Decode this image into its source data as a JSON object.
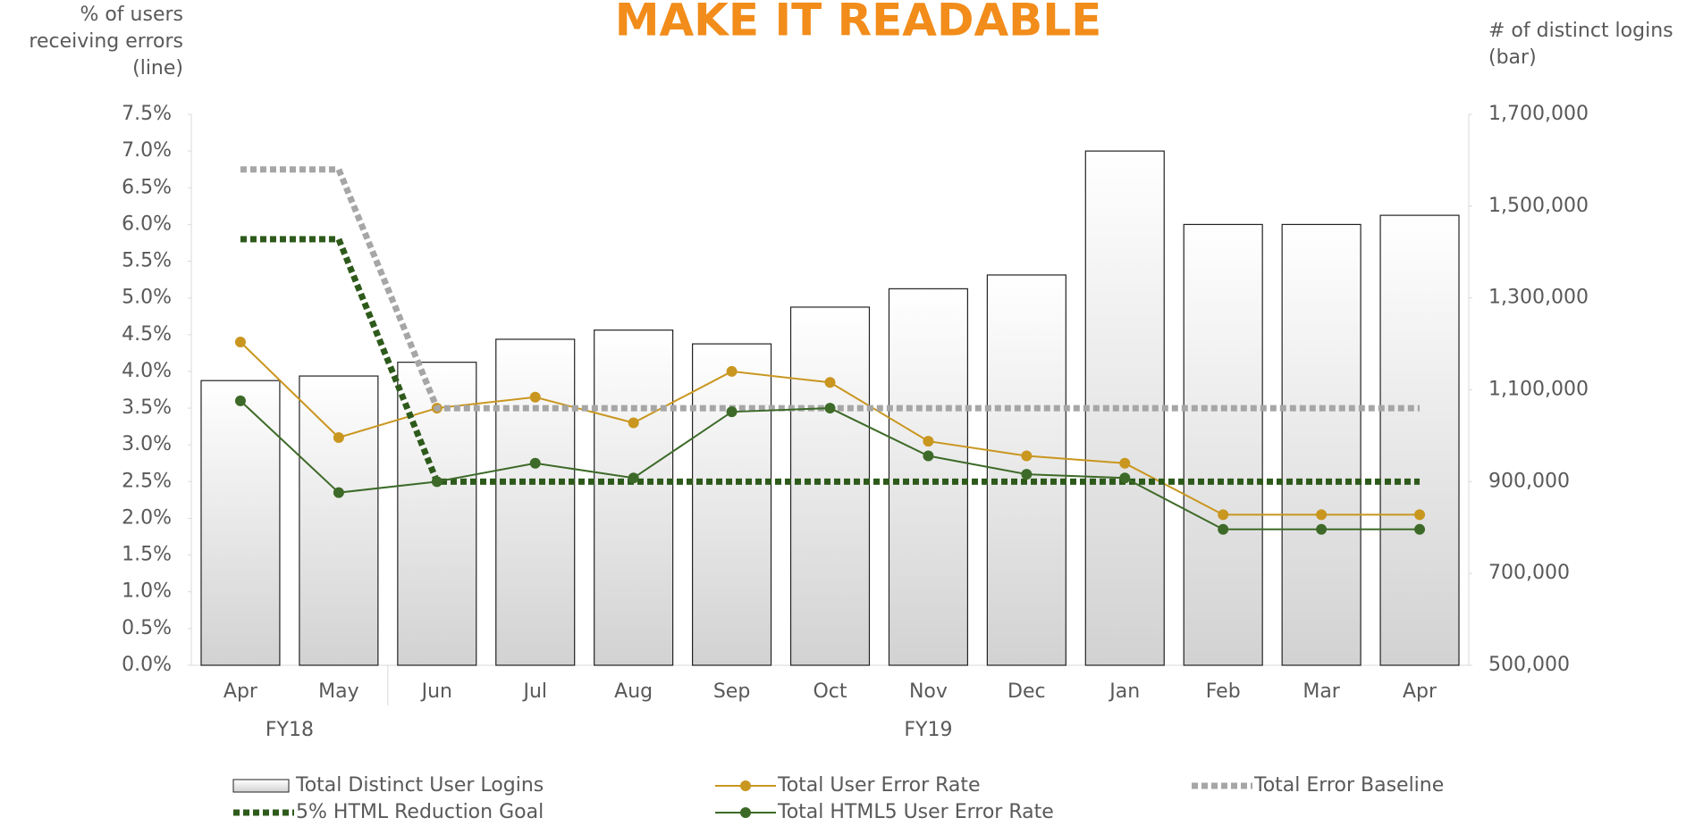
{
  "chart_data": {
    "type": "combo",
    "title": "MAKE IT READABLE",
    "y_label": [
      "% of users",
      "receiving errors",
      "(line)"
    ],
    "y2_label": [
      "# of distinct logins",
      "(bar)"
    ],
    "categories": [
      "Apr",
      "May",
      "Jun",
      "Jul",
      "Aug",
      "Sep",
      "Oct",
      "Nov",
      "Dec",
      "Jan",
      "Feb",
      "Mar",
      "Apr"
    ],
    "groups": [
      {
        "label": "FY18",
        "start": 0,
        "end": 1
      },
      {
        "label": "FY19",
        "start": 2,
        "end": 12
      }
    ],
    "ylim": [
      0,
      7.5
    ],
    "yticks": [
      {
        "value": 0,
        "label": "0.0%"
      },
      {
        "value": 0.5,
        "label": "0.5%"
      },
      {
        "value": 1,
        "label": "1.0%"
      },
      {
        "value": 1.5,
        "label": "1.5%"
      },
      {
        "value": 2,
        "label": "2.0%"
      },
      {
        "value": 2.5,
        "label": "2.5%"
      },
      {
        "value": 3,
        "label": "3.0%"
      },
      {
        "value": 3.5,
        "label": "3.5%"
      },
      {
        "value": 4,
        "label": "4.0%"
      },
      {
        "value": 4.5,
        "label": "4.5%"
      },
      {
        "value": 5,
        "label": "5.0%"
      },
      {
        "value": 5.5,
        "label": "5.5%"
      },
      {
        "value": 6,
        "label": "6.0%"
      },
      {
        "value": 6.5,
        "label": "6.5%"
      },
      {
        "value": 7,
        "label": "7.0%"
      },
      {
        "value": 7.5,
        "label": "7.5%"
      }
    ],
    "y2lim": [
      500000,
      1700000
    ],
    "y2ticks": [
      {
        "value": 500000,
        "label": "500,000"
      },
      {
        "value": 700000,
        "label": "700,000"
      },
      {
        "value": 900000,
        "label": "900,000"
      },
      {
        "value": 1100000,
        "label": "1,100,000"
      },
      {
        "value": 1300000,
        "label": "1,300,000"
      },
      {
        "value": 1500000,
        "label": "1,500,000"
      },
      {
        "value": 1700000,
        "label": "1,700,000"
      }
    ],
    "series": [
      {
        "name": "Total Distinct User Logins",
        "type": "bar",
        "axis": "y2",
        "color": "#d2d2d2",
        "values": [
          1120000,
          1130000,
          1160000,
          1210000,
          1230000,
          1200000,
          1280000,
          1320000,
          1350000,
          1620000,
          1460000,
          1460000,
          1480000
        ]
      },
      {
        "name": "Total User Error Rate",
        "type": "line",
        "axis": "y",
        "color": "#c9961f",
        "markers": true,
        "values": [
          4.4,
          3.1,
          3.5,
          3.65,
          3.3,
          4.0,
          3.85,
          3.05,
          2.85,
          2.75,
          2.05,
          2.05,
          2.05
        ]
      },
      {
        "name": "Total Error Baseline",
        "type": "dashed",
        "axis": "y",
        "color": "#a6a6a6",
        "values": [
          6.75,
          6.75,
          3.5,
          3.5,
          3.5,
          3.5,
          3.5,
          3.5,
          3.5,
          3.5,
          3.5,
          3.5,
          3.5
        ]
      },
      {
        "name": "5% HTML Reduction Goal",
        "type": "dashed",
        "axis": "y",
        "color": "#2d5a1b",
        "values": [
          5.8,
          5.8,
          2.5,
          2.5,
          2.5,
          2.5,
          2.5,
          2.5,
          2.5,
          2.5,
          2.5,
          2.5,
          2.5
        ]
      },
      {
        "name": "Total HTML5 User Error Rate",
        "type": "line",
        "axis": "y",
        "color": "#3d6a28",
        "markers": true,
        "values": [
          3.6,
          2.35,
          2.5,
          2.75,
          2.55,
          3.45,
          3.5,
          2.85,
          2.6,
          2.55,
          1.85,
          1.85,
          1.85
        ]
      }
    ]
  }
}
